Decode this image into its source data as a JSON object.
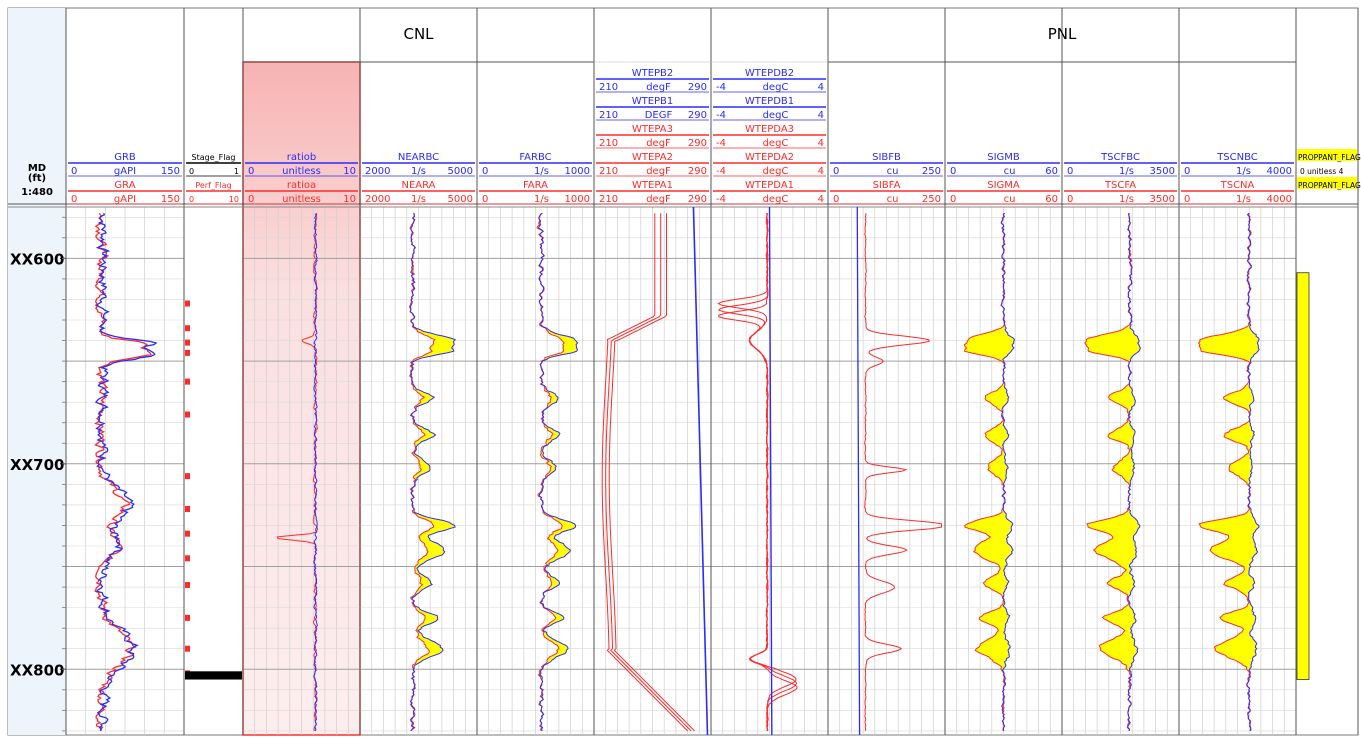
{
  "depth_track": {
    "title_line1": "MD",
    "title_line2": "(ft)",
    "scale": "1:480",
    "ticks": [
      {
        "label": "XX600",
        "depth": 600
      },
      {
        "label": "XX700",
        "depth": 700
      },
      {
        "label": "XX800",
        "depth": 800
      }
    ]
  },
  "groups": [
    {
      "label": "CNL",
      "from_track": 3,
      "to_track": 5
    },
    {
      "label": "PNL",
      "from_track": 8,
      "to_track": 11
    }
  ],
  "colors": {
    "blue": "#2b2bff",
    "red": "#ff2b2b",
    "fill_yellow": "#ffff00",
    "ratio_fill": "#f8c7c7",
    "grid": "#bfbfbf",
    "border": "#7a7a7a"
  },
  "tracks": [
    {
      "id": "gr",
      "curves": [
        {
          "name": "GRB",
          "unit": "gAPI",
          "min": "0",
          "max": "150",
          "color": "blue"
        },
        {
          "name": "GRA",
          "unit": "gAPI",
          "min": "0",
          "max": "150",
          "color": "red"
        }
      ]
    },
    {
      "id": "flags",
      "curves": [
        {
          "name": "Stage_Flag",
          "unit": "",
          "min": "0",
          "max": "1",
          "color": "black"
        },
        {
          "name": "Perf_Flag",
          "unit": "",
          "min": "0",
          "max": "10",
          "color": "red"
        }
      ]
    },
    {
      "id": "ratio",
      "curves": [
        {
          "name": "ratiob",
          "unit": "unitless",
          "min": "0",
          "max": "10",
          "color": "blue"
        },
        {
          "name": "ratioa",
          "unit": "unitless",
          "min": "0",
          "max": "10",
          "color": "red"
        }
      ]
    },
    {
      "id": "near",
      "curves": [
        {
          "name": "NEARBC",
          "unit": "1/s",
          "min": "2000",
          "max": "5000",
          "color": "blue"
        },
        {
          "name": "NEARA",
          "unit": "1/s",
          "min": "2000",
          "max": "5000",
          "color": "red"
        }
      ]
    },
    {
      "id": "far",
      "curves": [
        {
          "name": "FARBC",
          "unit": "1/s",
          "min": "0",
          "max": "1000",
          "color": "blue"
        },
        {
          "name": "FARA",
          "unit": "1/s",
          "min": "0",
          "max": "1000",
          "color": "red"
        }
      ]
    },
    {
      "id": "wtep",
      "curves": [
        {
          "name": "WTEPB2",
          "unit": "degF",
          "min": "210",
          "max": "290",
          "color": "blue"
        },
        {
          "name": "WTEPB1",
          "unit": "DEGF",
          "min": "210",
          "max": "290",
          "color": "blue"
        },
        {
          "name": "WTEPA3",
          "unit": "degF",
          "min": "210",
          "max": "290",
          "color": "red"
        },
        {
          "name": "WTEPA2",
          "unit": "degF",
          "min": "210",
          "max": "290",
          "color": "red"
        },
        {
          "name": "WTEPA1",
          "unit": "degF",
          "min": "210",
          "max": "290",
          "color": "red"
        }
      ]
    },
    {
      "id": "wtepd",
      "curves": [
        {
          "name": "WTEPDB2",
          "unit": "degC",
          "min": "-4",
          "max": "4",
          "color": "blue"
        },
        {
          "name": "WTEPDB1",
          "unit": "degC",
          "min": "-4",
          "max": "4",
          "color": "blue"
        },
        {
          "name": "WTEPDA3",
          "unit": "degC",
          "min": "-4",
          "max": "4",
          "color": "red"
        },
        {
          "name": "WTEPDA2",
          "unit": "degC",
          "min": "-4",
          "max": "4",
          "color": "red"
        },
        {
          "name": "WTEPDA1",
          "unit": "degC",
          "min": "-4",
          "max": "4",
          "color": "red"
        }
      ]
    },
    {
      "id": "sibf",
      "curves": [
        {
          "name": "SIBFB",
          "unit": "cu",
          "min": "0",
          "max": "250",
          "color": "blue"
        },
        {
          "name": "SIBFA",
          "unit": "cu",
          "min": "0",
          "max": "250",
          "color": "red"
        }
      ]
    },
    {
      "id": "sigm",
      "curves": [
        {
          "name": "SIGMB",
          "unit": "cu",
          "min": "0",
          "max": "60",
          "color": "blue"
        },
        {
          "name": "SIGMA",
          "unit": "cu",
          "min": "0",
          "max": "60",
          "color": "red"
        }
      ]
    },
    {
      "id": "tscf",
      "curves": [
        {
          "name": "TSCFBC",
          "unit": "1/s",
          "min": "0",
          "max": "3500",
          "color": "blue"
        },
        {
          "name": "TSCFA",
          "unit": "1/s",
          "min": "0",
          "max": "3500",
          "color": "red"
        }
      ]
    },
    {
      "id": "tscn",
      "curves": [
        {
          "name": "TSCNBC",
          "unit": "1/s",
          "min": "0",
          "max": "4000",
          "color": "blue"
        },
        {
          "name": "TSCNA",
          "unit": "1/s",
          "min": "0",
          "max": "4000",
          "color": "red"
        }
      ]
    },
    {
      "id": "proppant",
      "curves": [
        {
          "name": "PROPPANT_FLAG",
          "unit": "unitless",
          "min": "0",
          "max": "4",
          "color": "black"
        },
        {
          "name": "PROPPANT_FLAG",
          "unit": "",
          "min": "",
          "max": "",
          "color": "black"
        }
      ]
    }
  ],
  "chart_data": {
    "type": "well-log",
    "depth_axis": {
      "label": "MD (ft)",
      "scale": "1:480",
      "range": [
        575,
        830
      ],
      "ticks": [
        600,
        700,
        800
      ]
    },
    "shading": "yellow fill between blue (B) and red (A) curves in NEARBC, FARBC, SIGMB, TSCFBC, TSCNBC tracks",
    "zones": [
      {
        "top": 638,
        "bottom": 652,
        "note": "peak"
      },
      {
        "top": 728,
        "bottom": 745,
        "note": "peak"
      },
      {
        "top": 780,
        "bottom": 800,
        "note": "zone"
      }
    ],
    "stage_flag": {
      "value": 1,
      "top": 801,
      "bottom": 805
    },
    "perf_flag_depths": [
      622,
      634,
      641,
      646,
      660,
      676,
      706,
      722,
      734,
      746,
      759,
      775,
      790,
      802
    ],
    "proppant_flag": {
      "value": 4,
      "top": 607,
      "bottom": 805
    }
  }
}
